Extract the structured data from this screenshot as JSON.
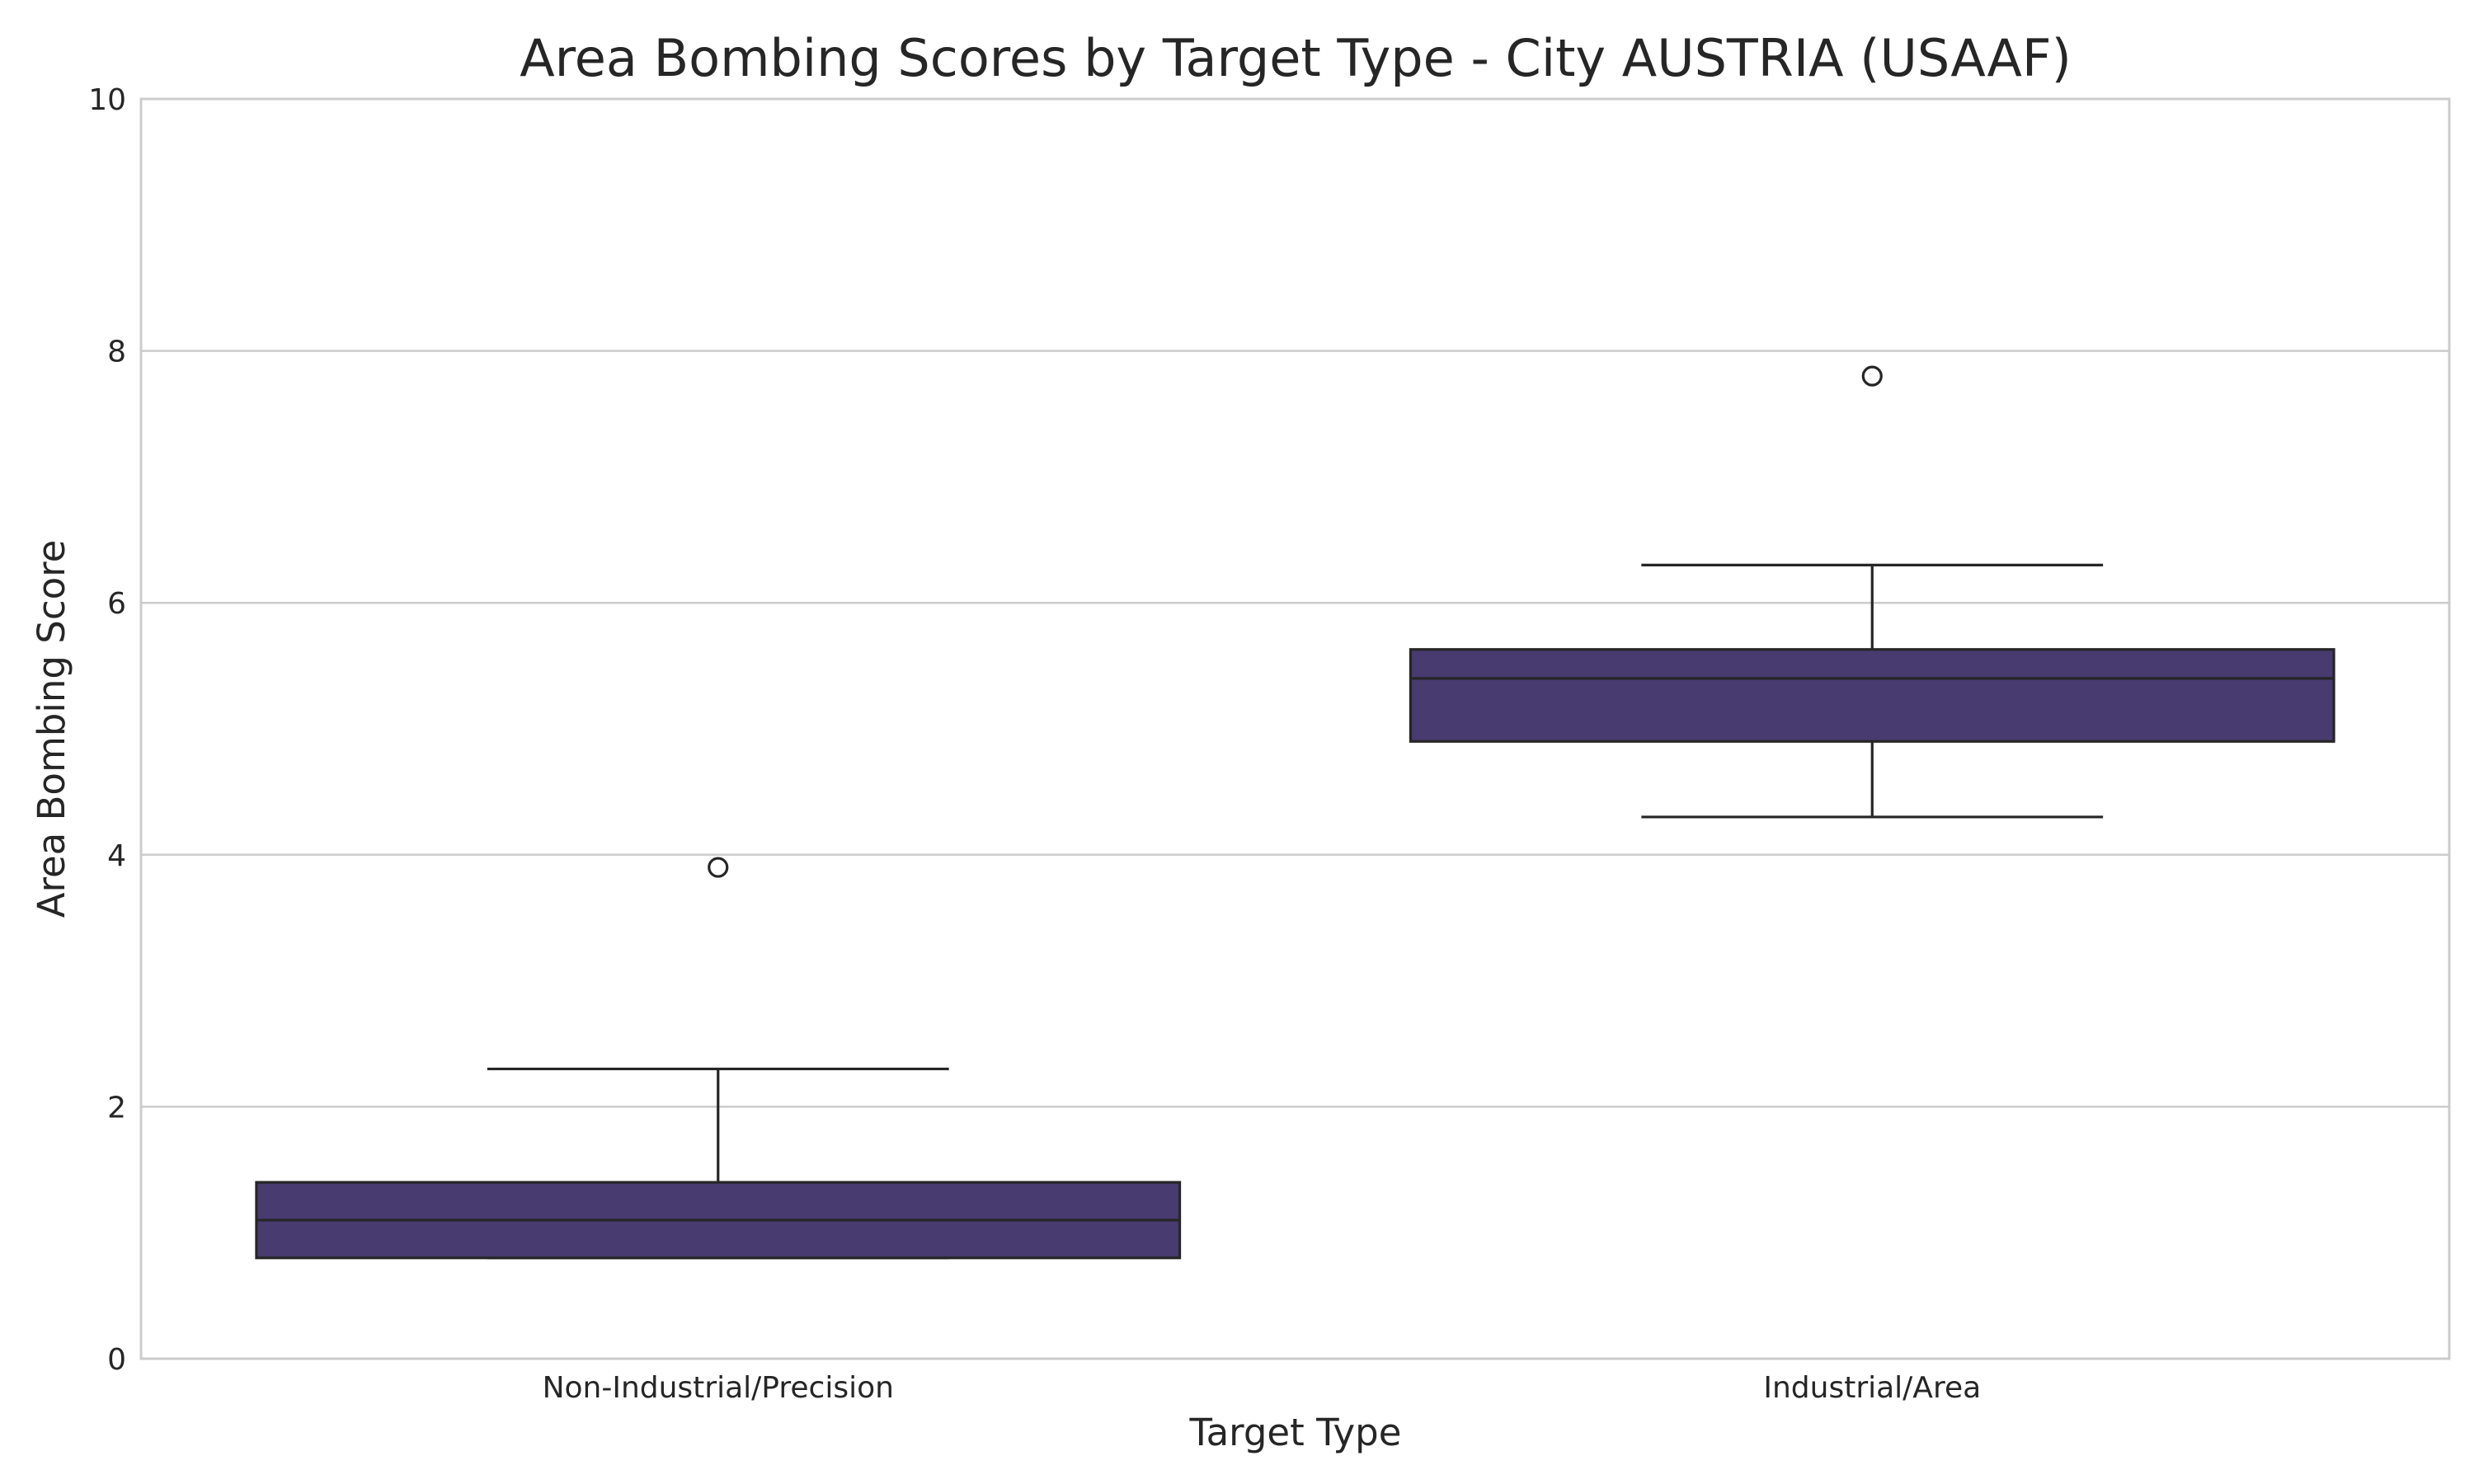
{
  "chart_data": {
    "type": "box",
    "title": "Area Bombing Scores by Target Type - City AUSTRIA (USAAF)",
    "xlabel": "Target Type",
    "ylabel": "Area Bombing Score",
    "ylim": [
      0,
      10
    ],
    "yticks": [
      0,
      2,
      4,
      6,
      8,
      10
    ],
    "grid": "horizontal",
    "categories": [
      "Non-Industrial/Precision",
      "Industrial/Area"
    ],
    "boxes": [
      {
        "category": "Non-Industrial/Precision",
        "whisker_low": 0.8,
        "q1": 0.8,
        "median": 1.1,
        "q3": 1.4,
        "whisker_high": 2.3,
        "outliers": [
          3.9
        ]
      },
      {
        "category": "Industrial/Area",
        "whisker_low": 4.3,
        "q1": 4.9,
        "median": 5.4,
        "q3": 5.63,
        "whisker_high": 6.3,
        "outliers": [
          7.8
        ]
      }
    ],
    "colors": {
      "box_fill": "#483b6f",
      "line": "#262626",
      "grid": "#cccccc",
      "frame": "#cccccc"
    }
  }
}
